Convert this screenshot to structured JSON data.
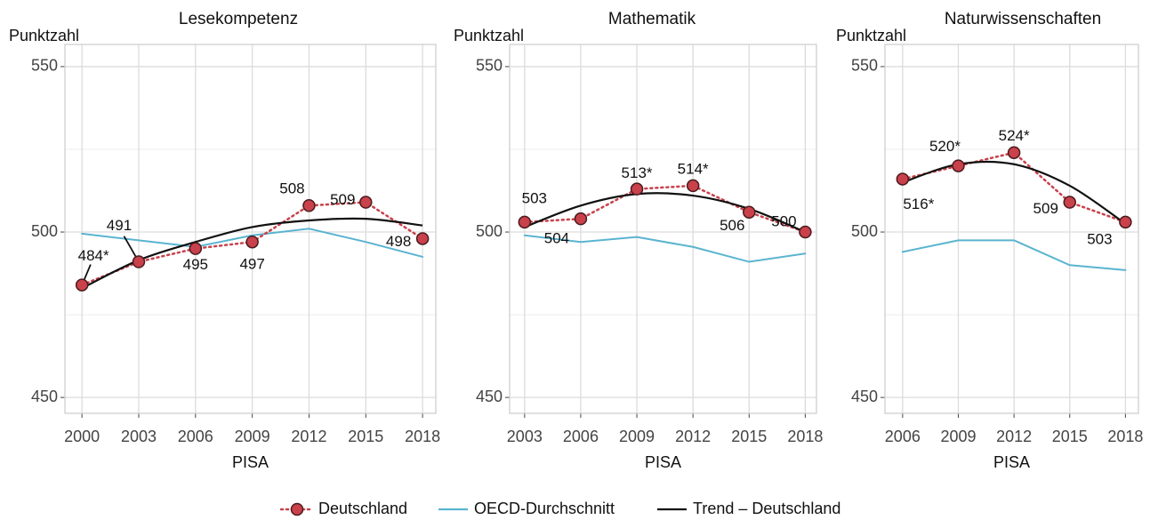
{
  "chart_data": [
    {
      "type": "line",
      "title": "Lesekompetenz",
      "y_label": "Punktzahl",
      "x_label": "PISA",
      "x": [
        2000,
        2003,
        2006,
        2009,
        2012,
        2015,
        2018
      ],
      "xlim": [
        1999.1,
        2018.7
      ],
      "xticks": [
        2000,
        2003,
        2006,
        2009,
        2012,
        2015,
        2018
      ],
      "ylim": [
        445.2,
        556.7
      ],
      "yticks": [
        450,
        500,
        550
      ],
      "grid": true,
      "series": [
        {
          "name": "Deutschland",
          "color": "#c8414b",
          "values": [
            484,
            491,
            495,
            497,
            508,
            509,
            498
          ],
          "value_labels": [
            "484*",
            "491",
            "495",
            "497",
            "508",
            "509",
            "498"
          ]
        },
        {
          "name": "OECD-Durchschnitt",
          "color": "#5ab4d0",
          "values": [
            499.5,
            497.5,
            495.5,
            499,
            501,
            497,
            492.5
          ]
        },
        {
          "name": "Trend – Deutschland",
          "color": "#111111",
          "values": [
            483,
            491.5,
            497,
            501.5,
            503.5,
            504,
            502
          ]
        }
      ]
    },
    {
      "type": "line",
      "title": "Mathematik",
      "y_label": "Punktzahl",
      "x_label": "PISA",
      "x": [
        2003,
        2006,
        2009,
        2012,
        2015,
        2018
      ],
      "xlim": [
        2002.2,
        2018.6
      ],
      "xticks": [
        2003,
        2006,
        2009,
        2012,
        2015,
        2018
      ],
      "ylim": [
        445.2,
        556.7
      ],
      "yticks": [
        450,
        500,
        550
      ],
      "grid": true,
      "series": [
        {
          "name": "Deutschland",
          "color": "#c8414b",
          "values": [
            503,
            504,
            513,
            514,
            506,
            500
          ],
          "value_labels": [
            "503",
            "504",
            "513*",
            "514*",
            "506",
            "500"
          ]
        },
        {
          "name": "OECD-Durchschnitt",
          "color": "#5ab4d0",
          "values": [
            499,
            497,
            498.5,
            495.5,
            491,
            493.5
          ]
        },
        {
          "name": "Trend – Deutschland",
          "color": "#111111",
          "values": [
            501.5,
            508,
            511.5,
            511,
            507,
            500
          ]
        }
      ]
    },
    {
      "type": "line",
      "title": "Naturwissenschaften",
      "y_label": "Punktzahl",
      "x_label": "PISA",
      "x": [
        2006,
        2009,
        2012,
        2015,
        2018
      ],
      "xlim": [
        2005.05,
        2018.7
      ],
      "xticks": [
        2006,
        2009,
        2012,
        2015,
        2018
      ],
      "ylim": [
        445.2,
        556.7
      ],
      "yticks": [
        450,
        500,
        550
      ],
      "grid": true,
      "series": [
        {
          "name": "Deutschland",
          "color": "#c8414b",
          "values": [
            516,
            520,
            524,
            509,
            503
          ],
          "value_labels": [
            "516*",
            "520*",
            "524*",
            "509",
            "503"
          ]
        },
        {
          "name": "OECD-Durchschnitt",
          "color": "#5ab4d0",
          "values": [
            494,
            497.5,
            497.5,
            490,
            488.5
          ]
        },
        {
          "name": "Trend – Deutschland",
          "color": "#111111",
          "values": [
            515,
            520.5,
            520.5,
            514,
            502.5
          ]
        }
      ]
    }
  ]
}
